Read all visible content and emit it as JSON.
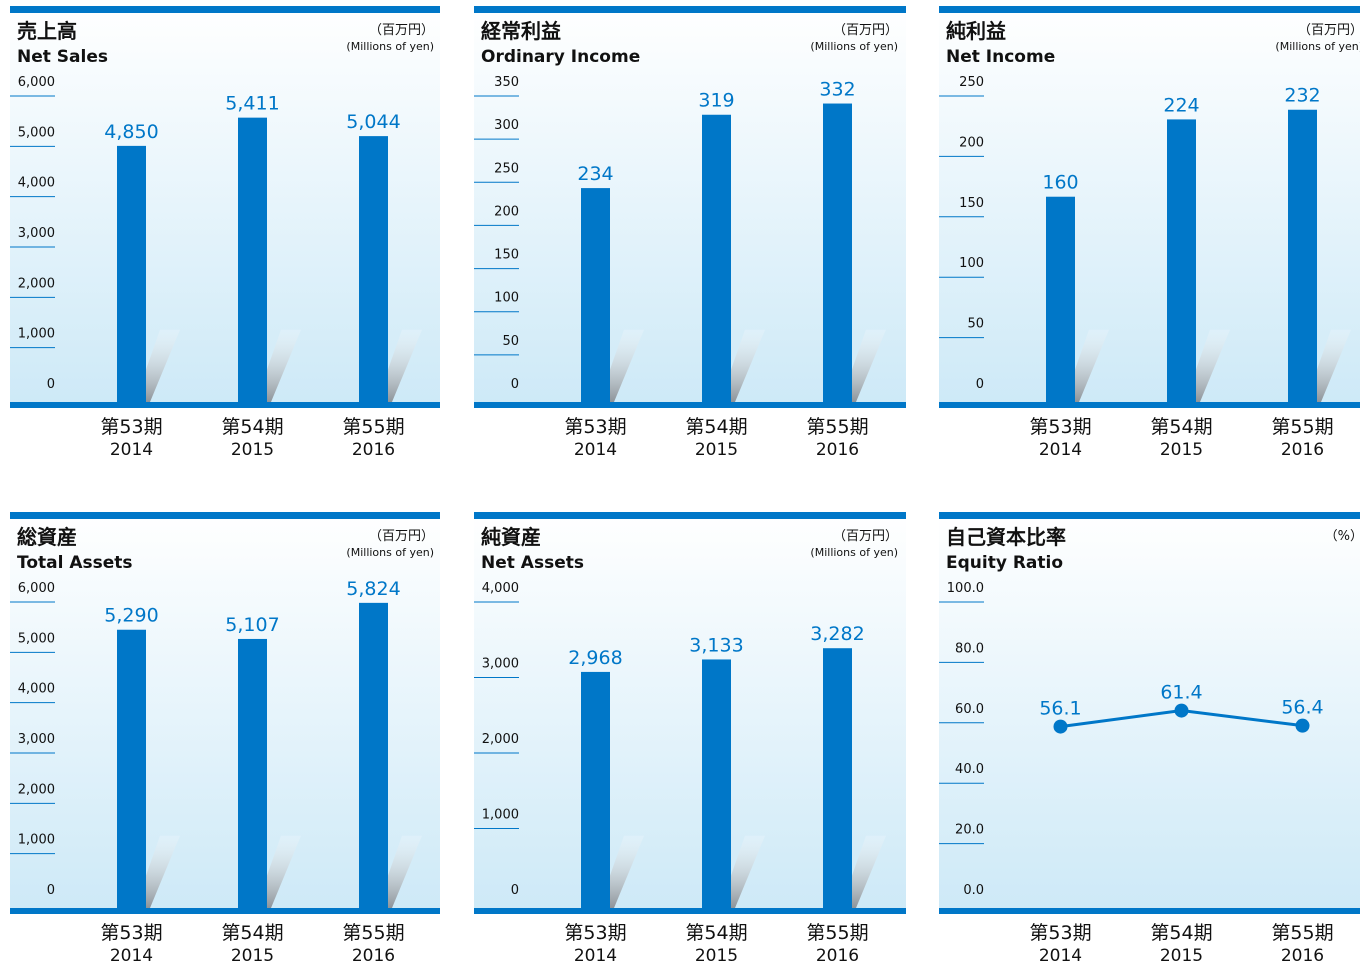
{
  "chart_data": [
    {
      "type": "bar",
      "title": "売上高",
      "subtitle": "Net Sales",
      "unit_jp": "（百万円）",
      "unit_en": "(Millions of yen)",
      "categories": [
        "第53期",
        "第54期",
        "第55期"
      ],
      "years": [
        "2014",
        "2015",
        "2016"
      ],
      "values": [
        4850,
        5411,
        5044
      ],
      "value_labels": [
        "4,850",
        "5,411",
        "5,044"
      ],
      "ylim": [
        0,
        6000
      ],
      "yticks": [
        "0",
        "1,000",
        "2,000",
        "3,000",
        "4,000",
        "5,000",
        "6,000"
      ]
    },
    {
      "type": "bar",
      "title": "経常利益",
      "subtitle": "Ordinary Income",
      "unit_jp": "（百万円）",
      "unit_en": "(Millions of yen)",
      "categories": [
        "第53期",
        "第54期",
        "第55期"
      ],
      "years": [
        "2014",
        "2015",
        "2016"
      ],
      "values": [
        234,
        319,
        332
      ],
      "value_labels": [
        "234",
        "319",
        "332"
      ],
      "ylim": [
        0,
        350
      ],
      "yticks": [
        "0",
        "50",
        "100",
        "150",
        "200",
        "250",
        "300",
        "350"
      ]
    },
    {
      "type": "bar",
      "title": "純利益",
      "subtitle": "Net Income",
      "unit_jp": "（百万円）",
      "unit_en": "(Millions of yen)",
      "categories": [
        "第53期",
        "第54期",
        "第55期"
      ],
      "years": [
        "2014",
        "2015",
        "2016"
      ],
      "values": [
        160,
        224,
        232
      ],
      "value_labels": [
        "160",
        "224",
        "232"
      ],
      "ylim": [
        0,
        250
      ],
      "yticks": [
        "0",
        "50",
        "100",
        "150",
        "200",
        "250"
      ]
    },
    {
      "type": "bar",
      "title": "総資産",
      "subtitle": "Total Assets",
      "unit_jp": "（百万円）",
      "unit_en": "(Millions of yen)",
      "categories": [
        "第53期",
        "第54期",
        "第55期"
      ],
      "years": [
        "2014",
        "2015",
        "2016"
      ],
      "values": [
        5290,
        5107,
        5824
      ],
      "value_labels": [
        "5,290",
        "5,107",
        "5,824"
      ],
      "ylim": [
        0,
        6000
      ],
      "yticks": [
        "0",
        "1,000",
        "2,000",
        "3,000",
        "4,000",
        "5,000",
        "6,000"
      ]
    },
    {
      "type": "bar",
      "title": "純資産",
      "subtitle": "Net Assets",
      "unit_jp": "（百万円）",
      "unit_en": "(Millions of yen)",
      "categories": [
        "第53期",
        "第54期",
        "第55期"
      ],
      "years": [
        "2014",
        "2015",
        "2016"
      ],
      "values": [
        2968,
        3133,
        3282
      ],
      "value_labels": [
        "2,968",
        "3,133",
        "3,282"
      ],
      "ylim": [
        0,
        4000
      ],
      "yticks": [
        "0",
        "1,000",
        "2,000",
        "3,000",
        "4,000"
      ]
    },
    {
      "type": "line",
      "title": "自己資本比率",
      "subtitle": "Equity Ratio",
      "unit_jp": "（%）",
      "unit_en": "",
      "categories": [
        "第53期",
        "第54期",
        "第55期"
      ],
      "years": [
        "2014",
        "2015",
        "2016"
      ],
      "values": [
        56.1,
        61.4,
        56.4
      ],
      "value_labels": [
        "56.1",
        "61.4",
        "56.4"
      ],
      "ylim": [
        0,
        100
      ],
      "yticks": [
        "0.0",
        "20.0",
        "40.0",
        "60.0",
        "80.0",
        "100.0"
      ]
    }
  ],
  "colors": {
    "bar": "#0077c8",
    "header": "#0077c8",
    "label": "#0077c8",
    "bg_top": "#ffffff",
    "bg_bottom": "#cce9f7"
  }
}
